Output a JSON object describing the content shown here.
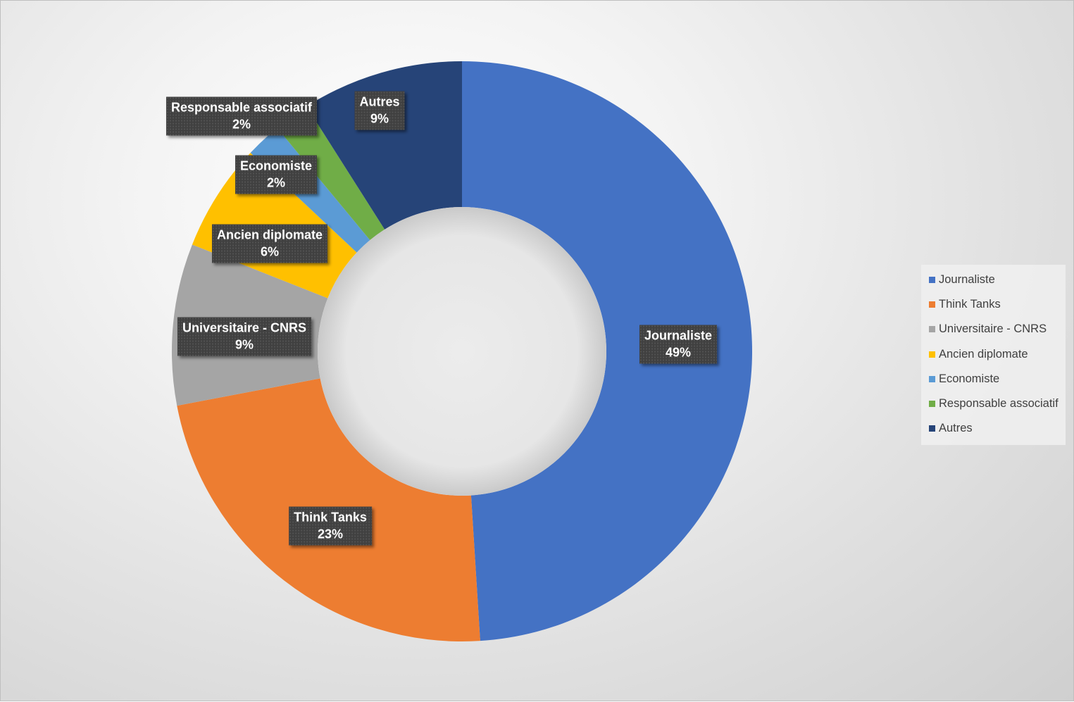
{
  "chart_data": {
    "type": "pie",
    "variant": "donut",
    "title": "",
    "legend_position": "right",
    "categories": [
      "Journaliste",
      "Think Tanks",
      "Universitaire - CNRS",
      "Ancien diplomate",
      "Economiste",
      "Responsable associatif",
      "Autres"
    ],
    "values": [
      49,
      23,
      9,
      6,
      2,
      2,
      9
    ],
    "value_labels": [
      "49%",
      "23%",
      "9%",
      "6%",
      "2%",
      "2%",
      "9%"
    ],
    "colors": [
      "#4472C4",
      "#ED7D31",
      "#A5A5A5",
      "#FFC000",
      "#5B9BD5",
      "#70AD47",
      "#264478"
    ]
  }
}
